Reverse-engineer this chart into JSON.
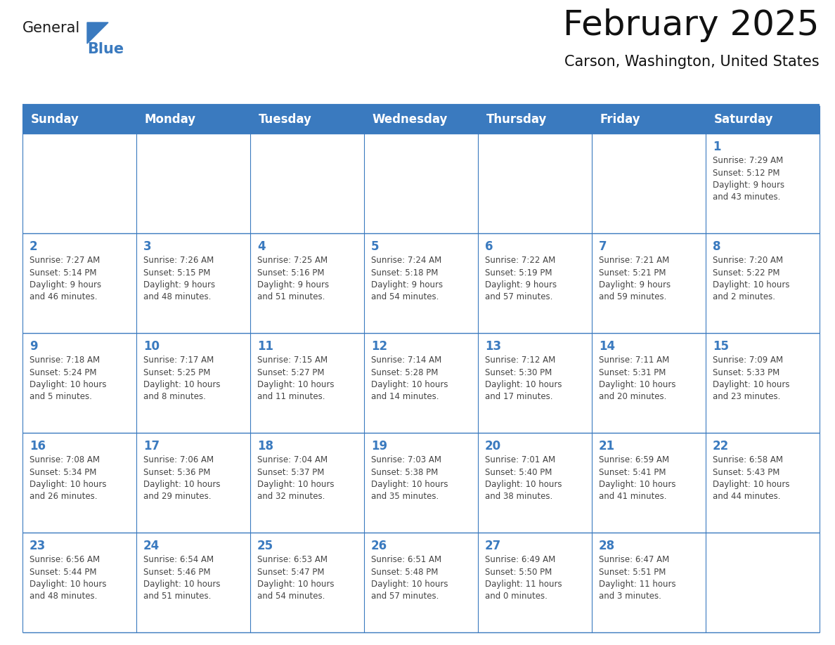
{
  "title": "February 2025",
  "subtitle": "Carson, Washington, United States",
  "header_bg": "#3a7abf",
  "header_text_color": "#ffffff",
  "cell_bg": "#ffffff",
  "border_color": "#3a7abf",
  "day_number_color": "#3a7abf",
  "text_color": "#444444",
  "days_of_week": [
    "Sunday",
    "Monday",
    "Tuesday",
    "Wednesday",
    "Thursday",
    "Friday",
    "Saturday"
  ],
  "weeks": [
    [
      {
        "day": null,
        "info": null
      },
      {
        "day": null,
        "info": null
      },
      {
        "day": null,
        "info": null
      },
      {
        "day": null,
        "info": null
      },
      {
        "day": null,
        "info": null
      },
      {
        "day": null,
        "info": null
      },
      {
        "day": 1,
        "info": "Sunrise: 7:29 AM\nSunset: 5:12 PM\nDaylight: 9 hours\nand 43 minutes."
      }
    ],
    [
      {
        "day": 2,
        "info": "Sunrise: 7:27 AM\nSunset: 5:14 PM\nDaylight: 9 hours\nand 46 minutes."
      },
      {
        "day": 3,
        "info": "Sunrise: 7:26 AM\nSunset: 5:15 PM\nDaylight: 9 hours\nand 48 minutes."
      },
      {
        "day": 4,
        "info": "Sunrise: 7:25 AM\nSunset: 5:16 PM\nDaylight: 9 hours\nand 51 minutes."
      },
      {
        "day": 5,
        "info": "Sunrise: 7:24 AM\nSunset: 5:18 PM\nDaylight: 9 hours\nand 54 minutes."
      },
      {
        "day": 6,
        "info": "Sunrise: 7:22 AM\nSunset: 5:19 PM\nDaylight: 9 hours\nand 57 minutes."
      },
      {
        "day": 7,
        "info": "Sunrise: 7:21 AM\nSunset: 5:21 PM\nDaylight: 9 hours\nand 59 minutes."
      },
      {
        "day": 8,
        "info": "Sunrise: 7:20 AM\nSunset: 5:22 PM\nDaylight: 10 hours\nand 2 minutes."
      }
    ],
    [
      {
        "day": 9,
        "info": "Sunrise: 7:18 AM\nSunset: 5:24 PM\nDaylight: 10 hours\nand 5 minutes."
      },
      {
        "day": 10,
        "info": "Sunrise: 7:17 AM\nSunset: 5:25 PM\nDaylight: 10 hours\nand 8 minutes."
      },
      {
        "day": 11,
        "info": "Sunrise: 7:15 AM\nSunset: 5:27 PM\nDaylight: 10 hours\nand 11 minutes."
      },
      {
        "day": 12,
        "info": "Sunrise: 7:14 AM\nSunset: 5:28 PM\nDaylight: 10 hours\nand 14 minutes."
      },
      {
        "day": 13,
        "info": "Sunrise: 7:12 AM\nSunset: 5:30 PM\nDaylight: 10 hours\nand 17 minutes."
      },
      {
        "day": 14,
        "info": "Sunrise: 7:11 AM\nSunset: 5:31 PM\nDaylight: 10 hours\nand 20 minutes."
      },
      {
        "day": 15,
        "info": "Sunrise: 7:09 AM\nSunset: 5:33 PM\nDaylight: 10 hours\nand 23 minutes."
      }
    ],
    [
      {
        "day": 16,
        "info": "Sunrise: 7:08 AM\nSunset: 5:34 PM\nDaylight: 10 hours\nand 26 minutes."
      },
      {
        "day": 17,
        "info": "Sunrise: 7:06 AM\nSunset: 5:36 PM\nDaylight: 10 hours\nand 29 minutes."
      },
      {
        "day": 18,
        "info": "Sunrise: 7:04 AM\nSunset: 5:37 PM\nDaylight: 10 hours\nand 32 minutes."
      },
      {
        "day": 19,
        "info": "Sunrise: 7:03 AM\nSunset: 5:38 PM\nDaylight: 10 hours\nand 35 minutes."
      },
      {
        "day": 20,
        "info": "Sunrise: 7:01 AM\nSunset: 5:40 PM\nDaylight: 10 hours\nand 38 minutes."
      },
      {
        "day": 21,
        "info": "Sunrise: 6:59 AM\nSunset: 5:41 PM\nDaylight: 10 hours\nand 41 minutes."
      },
      {
        "day": 22,
        "info": "Sunrise: 6:58 AM\nSunset: 5:43 PM\nDaylight: 10 hours\nand 44 minutes."
      }
    ],
    [
      {
        "day": 23,
        "info": "Sunrise: 6:56 AM\nSunset: 5:44 PM\nDaylight: 10 hours\nand 48 minutes."
      },
      {
        "day": 24,
        "info": "Sunrise: 6:54 AM\nSunset: 5:46 PM\nDaylight: 10 hours\nand 51 minutes."
      },
      {
        "day": 25,
        "info": "Sunrise: 6:53 AM\nSunset: 5:47 PM\nDaylight: 10 hours\nand 54 minutes."
      },
      {
        "day": 26,
        "info": "Sunrise: 6:51 AM\nSunset: 5:48 PM\nDaylight: 10 hours\nand 57 minutes."
      },
      {
        "day": 27,
        "info": "Sunrise: 6:49 AM\nSunset: 5:50 PM\nDaylight: 11 hours\nand 0 minutes."
      },
      {
        "day": 28,
        "info": "Sunrise: 6:47 AM\nSunset: 5:51 PM\nDaylight: 11 hours\nand 3 minutes."
      },
      {
        "day": null,
        "info": null
      }
    ]
  ],
  "logo_text_general": "General",
  "logo_text_blue": "Blue",
  "logo_triangle_color": "#3a7abf",
  "title_fontsize": 36,
  "subtitle_fontsize": 15,
  "header_fontsize": 12,
  "day_num_fontsize": 12,
  "cell_text_fontsize": 8.5
}
